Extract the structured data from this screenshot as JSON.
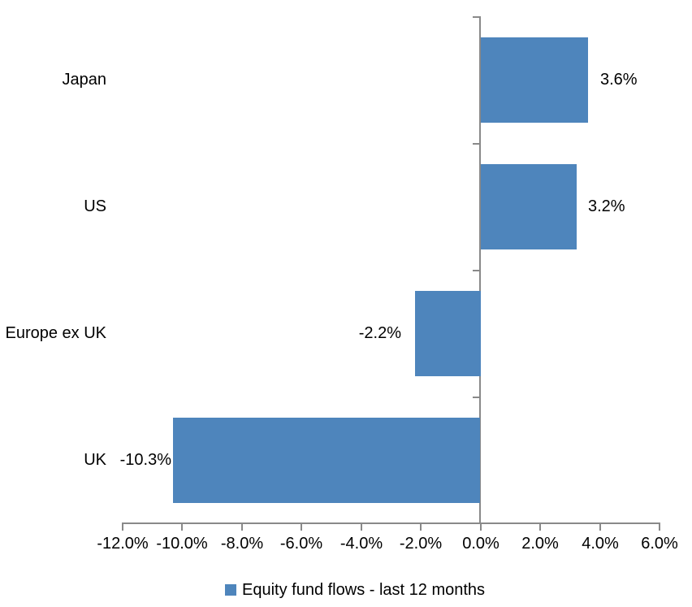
{
  "chart_data": {
    "type": "bar",
    "orientation": "horizontal",
    "categories": [
      "Japan",
      "US",
      "Europe ex UK",
      "UK"
    ],
    "values": [
      3.6,
      3.2,
      -2.2,
      -10.3
    ],
    "data_labels": [
      "3.6%",
      "3.2%",
      "-2.2%",
      "-10.3%"
    ],
    "x_tick_values": [
      -12,
      -10,
      -8,
      -6,
      -4,
      -2,
      0,
      2,
      4,
      6
    ],
    "x_tick_labels": [
      "-12.0%",
      "-10.0%",
      "-8.0%",
      "-6.0%",
      "-4.0%",
      "-2.0%",
      "0.0%",
      "2.0%",
      "4.0%",
      "6.0%"
    ],
    "xlim": [
      -12,
      6
    ],
    "grid": false,
    "axis_crosses_at_zero": true,
    "legend_position": "bottom",
    "legend": "Equity fund flows - last 12 months",
    "bar_color": "#4E85BC",
    "axis_color": "#898989",
    "text_color": "#000000",
    "background_color": "#ffffff"
  }
}
